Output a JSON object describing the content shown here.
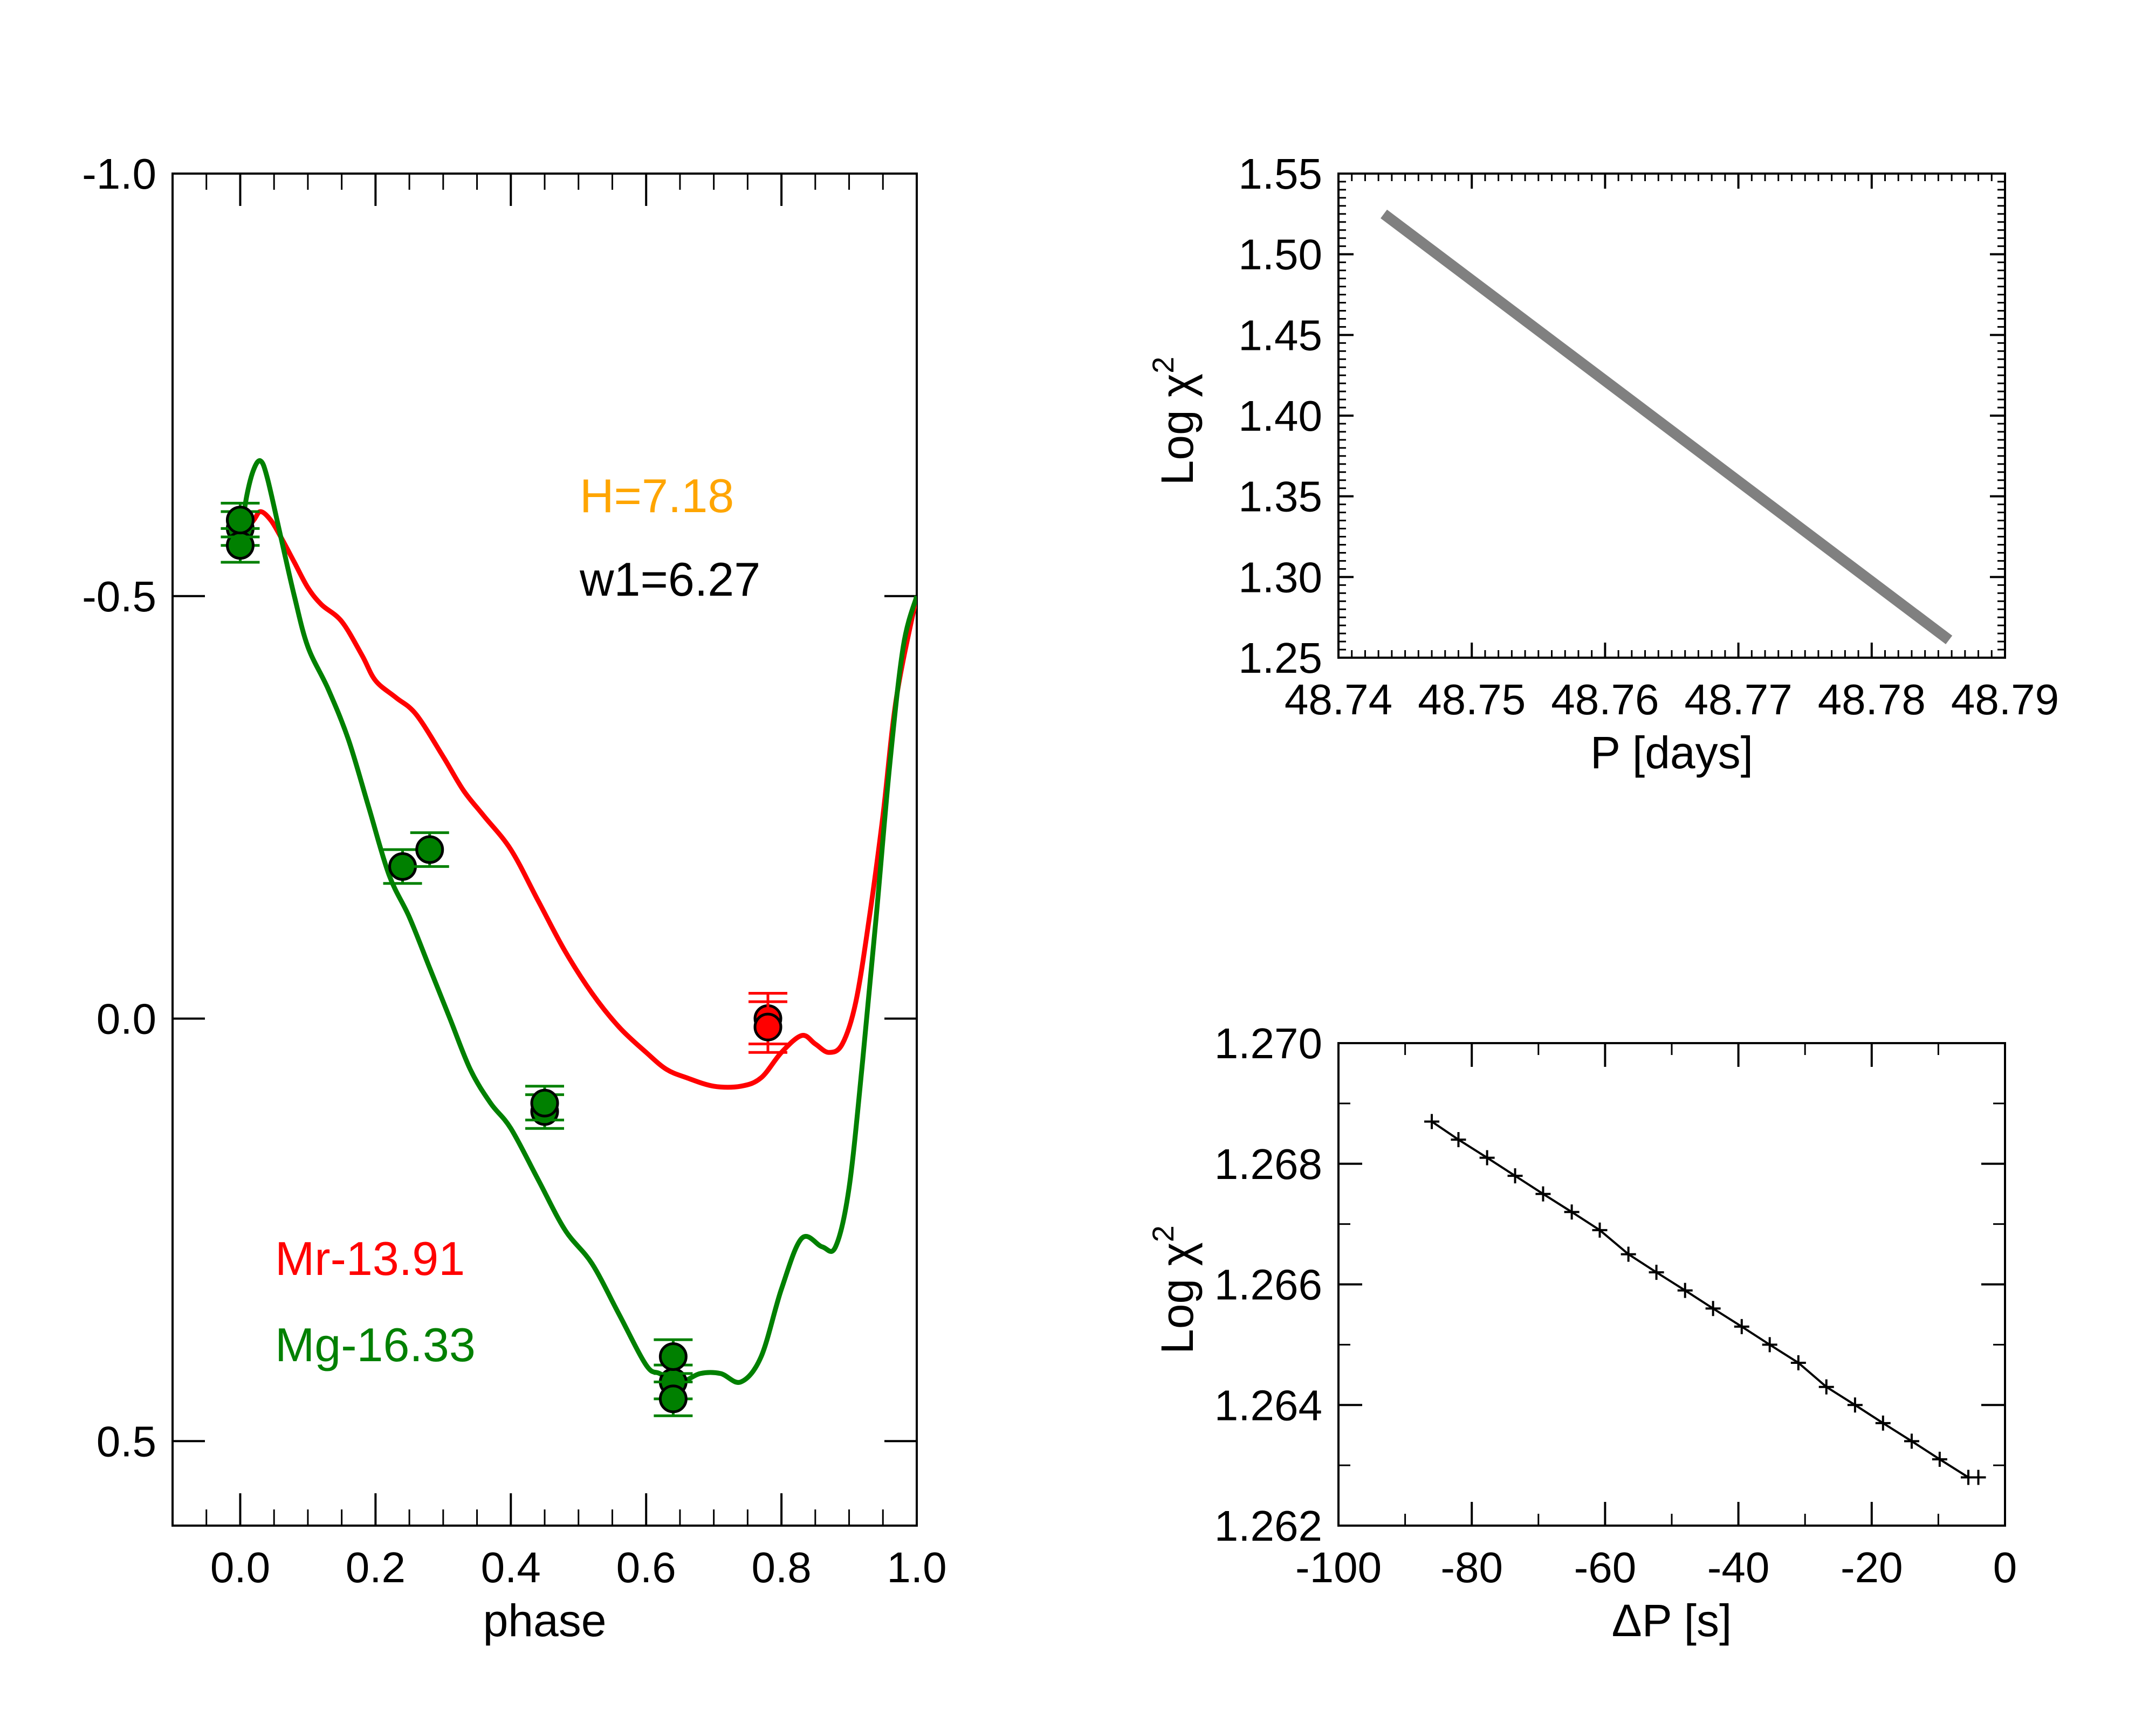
{
  "chart_data": [
    {
      "type": "line",
      "panel": "left",
      "xlabel": "phase",
      "ylabel": "",
      "xlim": [
        -0.1,
        1.0
      ],
      "ylim": [
        0.6,
        -1.0
      ],
      "y_inverted": true,
      "xticks": [
        "0.0",
        "0.2",
        "0.4",
        "0.6",
        "0.8",
        "1.0"
      ],
      "xtick_values": [
        0.0,
        0.2,
        0.4,
        0.6,
        0.8,
        1.0
      ],
      "yticks": [
        "-1.0",
        "-0.5",
        "0.0",
        "0.5"
      ],
      "ytick_values": [
        -1.0,
        -0.5,
        0.0,
        0.5
      ],
      "annotations": [
        {
          "text": "H=7.18",
          "color": "#ffa500"
        },
        {
          "text": "w1=6.27",
          "color": "#000000"
        },
        {
          "text": "Mr-13.91",
          "color": "#ff0000"
        },
        {
          "text": "Mg-16.33",
          "color": "#008000"
        }
      ],
      "series": [
        {
          "color": "#ff0000",
          "curve_x": [
            0.0,
            0.02,
            0.03,
            0.045,
            0.06,
            0.08,
            0.1,
            0.12,
            0.15,
            0.18,
            0.2,
            0.23,
            0.26,
            0.3,
            0.33,
            0.36,
            0.4,
            0.44,
            0.48,
            0.52,
            0.56,
            0.6,
            0.63,
            0.66,
            0.7,
            0.74,
            0.77,
            0.8,
            0.83,
            0.85,
            0.87,
            0.89,
            0.91,
            0.93,
            0.95,
            0.97,
            1.0
          ],
          "curve_y": [
            -0.57,
            -0.59,
            -0.6,
            -0.59,
            -0.57,
            -0.54,
            -0.51,
            -0.49,
            -0.47,
            -0.43,
            -0.4,
            -0.38,
            -0.36,
            -0.31,
            -0.27,
            -0.24,
            -0.2,
            -0.14,
            -0.08,
            -0.03,
            0.01,
            0.04,
            0.06,
            0.07,
            0.08,
            0.08,
            0.07,
            0.04,
            0.02,
            0.03,
            0.04,
            0.03,
            -0.02,
            -0.12,
            -0.24,
            -0.38,
            -0.5
          ],
          "points_x": [
            0.78,
            0.78
          ],
          "points_y": [
            0.0,
            0.01
          ],
          "errors": [
            0.03,
            0.03
          ]
        },
        {
          "color": "#008000",
          "curve_x": [
            0.0,
            0.01,
            0.02,
            0.03,
            0.04,
            0.06,
            0.08,
            0.1,
            0.13,
            0.16,
            0.19,
            0.22,
            0.25,
            0.28,
            0.31,
            0.34,
            0.37,
            0.4,
            0.44,
            0.48,
            0.52,
            0.56,
            0.6,
            0.62,
            0.65,
            0.68,
            0.71,
            0.74,
            0.77,
            0.8,
            0.83,
            0.86,
            0.88,
            0.9,
            0.92,
            0.94,
            0.96,
            0.98,
            1.0
          ],
          "curve_y": [
            -0.57,
            -0.62,
            -0.65,
            -0.66,
            -0.64,
            -0.57,
            -0.5,
            -0.44,
            -0.39,
            -0.33,
            -0.25,
            -0.17,
            -0.12,
            -0.06,
            0.0,
            0.06,
            0.1,
            0.13,
            0.19,
            0.25,
            0.29,
            0.35,
            0.41,
            0.42,
            0.43,
            0.42,
            0.42,
            0.43,
            0.4,
            0.32,
            0.26,
            0.27,
            0.27,
            0.2,
            0.05,
            -0.12,
            -0.3,
            -0.44,
            -0.5
          ],
          "points_x": [
            0.0,
            0.0,
            0.0,
            0.24,
            0.28,
            0.45,
            0.45,
            0.64,
            0.64,
            0.64
          ],
          "points_y": [
            -0.58,
            -0.56,
            -0.59,
            -0.18,
            -0.2,
            0.11,
            0.1,
            0.43,
            0.4,
            0.45
          ],
          "errors": [
            0.02,
            0.02,
            0.02,
            0.02,
            0.02,
            0.02,
            0.02,
            0.02,
            0.02,
            0.02
          ]
        }
      ]
    },
    {
      "type": "line",
      "panel": "top-right",
      "xlabel": "P [days]",
      "ylabel": "Log χ",
      "ylabel_sup": "2",
      "xlim": [
        48.74,
        48.79
      ],
      "ylim": [
        1.25,
        1.55
      ],
      "xticks": [
        "48.74",
        "48.75",
        "48.76",
        "48.77",
        "48.78",
        "48.79"
      ],
      "xtick_values": [
        48.74,
        48.75,
        48.76,
        48.77,
        48.78,
        48.79
      ],
      "yticks": [
        "1.25",
        "1.30",
        "1.35",
        "1.40",
        "1.45",
        "1.50",
        "1.55"
      ],
      "ytick_values": [
        1.25,
        1.3,
        1.35,
        1.4,
        1.45,
        1.5,
        1.55
      ],
      "series": [
        {
          "color": "#808080",
          "x": [
            48.7434,
            48.7858
          ],
          "y": [
            1.525,
            1.261
          ]
        }
      ]
    },
    {
      "type": "line",
      "panel": "bottom-right",
      "xlabel": "ΔP [s]",
      "ylabel": "Log χ",
      "ylabel_sup": "2",
      "xlim": [
        -100,
        0
      ],
      "ylim": [
        1.262,
        1.27
      ],
      "xticks": [
        "-100",
        "-80",
        "-60",
        "-40",
        "-20",
        "0"
      ],
      "xtick_values": [
        -100,
        -80,
        -60,
        -40,
        -20,
        0
      ],
      "yticks": [
        "1.262",
        "1.264",
        "1.266",
        "1.268",
        "1.270"
      ],
      "ytick_values": [
        1.262,
        1.264,
        1.266,
        1.268,
        1.27
      ],
      "series": [
        {
          "color": "#000000",
          "x": [
            -86,
            -82,
            -77.7,
            -73.5,
            -69.3,
            -65,
            -60.8,
            -56.5,
            -52.3,
            -48,
            -43.8,
            -39.5,
            -35.3,
            -31,
            -26.8,
            -22.5,
            -18.3,
            -14,
            -9.8,
            -5.5,
            -4
          ],
          "y": [
            1.2687,
            1.2684,
            1.2681,
            1.2678,
            1.2675,
            1.2672,
            1.2669,
            1.2665,
            1.2662,
            1.2659,
            1.2656,
            1.2653,
            1.265,
            1.2647,
            1.2643,
            1.264,
            1.2637,
            1.2634,
            1.2631,
            1.2628,
            1.2628
          ]
        }
      ]
    }
  ]
}
